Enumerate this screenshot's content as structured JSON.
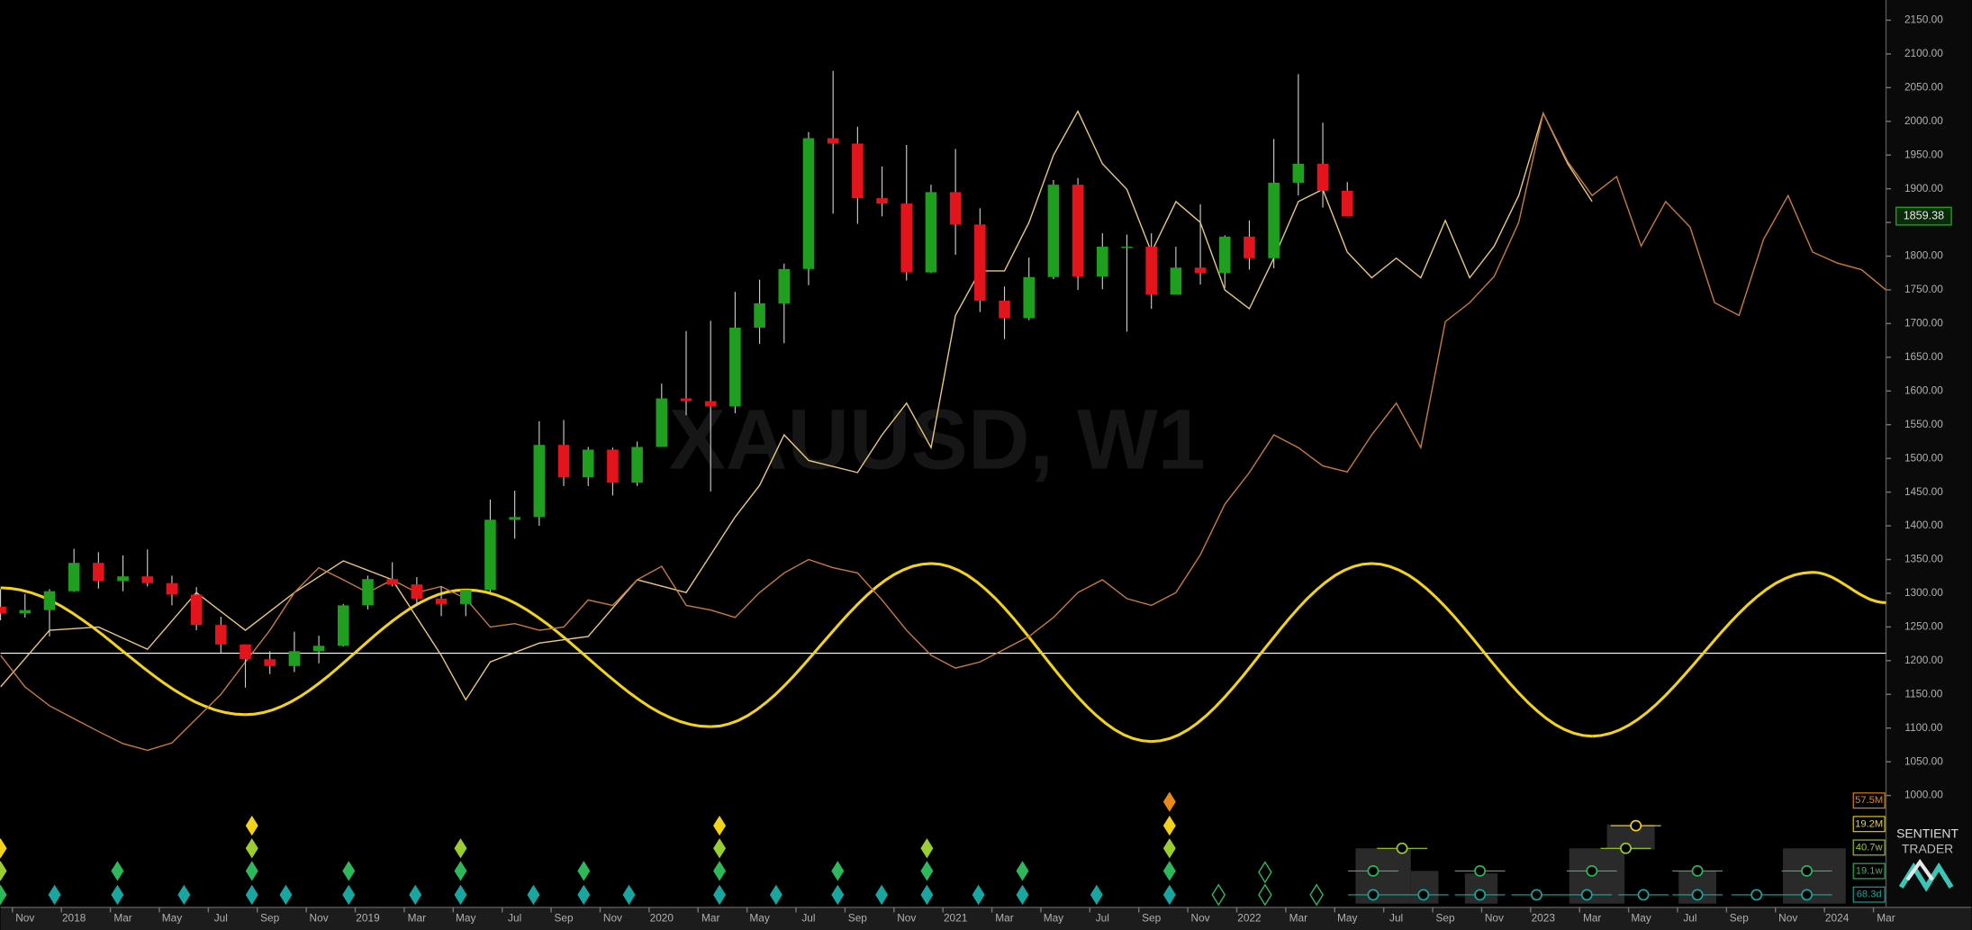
{
  "chart_data": {
    "type": "candlestick",
    "title": "XAUUSD, W1",
    "up_color": "#1f9e1f",
    "down_color": "#e3141c",
    "x": [
      "2017-10",
      "2017-11",
      "2017-12",
      "2018-01",
      "2018-02",
      "2018-03",
      "2018-04",
      "2018-05",
      "2018-06",
      "2018-07",
      "2018-08",
      "2018-09",
      "2018-10",
      "2018-11",
      "2018-12",
      "2019-01",
      "2019-02",
      "2019-03",
      "2019-04",
      "2019-05",
      "2019-06",
      "2019-07",
      "2019-08",
      "2019-09",
      "2019-10",
      "2019-11",
      "2019-12",
      "2020-01",
      "2020-02",
      "2020-03",
      "2020-04",
      "2020-05",
      "2020-06",
      "2020-07",
      "2020-08",
      "2020-09",
      "2020-10",
      "2020-11",
      "2020-12",
      "2021-01",
      "2021-02",
      "2021-03",
      "2021-04",
      "2021-05",
      "2021-06",
      "2021-07",
      "2021-08",
      "2021-09",
      "2021-10",
      "2021-11",
      "2021-12",
      "2022-01",
      "2022-02",
      "2022-03",
      "2022-04",
      "2022-05"
    ],
    "open": [
      1280,
      1270,
      1275,
      1303,
      1345,
      1318,
      1325,
      1315,
      1298,
      1253,
      1224,
      1202,
      1192,
      1214,
      1222,
      1282,
      1321,
      1313,
      1292,
      1284,
      1305,
      1409,
      1413,
      1520,
      1472,
      1513,
      1464,
      1517,
      1589,
      1585,
      1577,
      1694,
      1730,
      1781,
      1975,
      1967,
      1886,
      1878,
      1776,
      1895,
      1847,
      1734,
      1708,
      1769,
      1906,
      1770,
      1814,
      1814,
      1743,
      1783,
      1775,
      1829,
      1797,
      1909,
      1937,
      1897
    ],
    "high": [
      1306,
      1299,
      1306,
      1366,
      1361,
      1356,
      1365,
      1326,
      1309,
      1265,
      1224,
      1214,
      1243,
      1237,
      1284,
      1326,
      1346,
      1324,
      1310,
      1306,
      1439,
      1452,
      1555,
      1557,
      1517,
      1516,
      1525,
      1611,
      1689,
      1704,
      1747,
      1765,
      1789,
      1984,
      2075,
      1992,
      1933,
      1965,
      1906,
      1959,
      1871,
      1755,
      1798,
      1913,
      1916,
      1834,
      1832,
      1834,
      1814,
      1877,
      1831,
      1853,
      1974,
      2070,
      1998,
      1910
    ],
    "low": [
      1260,
      1264,
      1236,
      1302,
      1307,
      1303,
      1310,
      1282,
      1245,
      1211,
      1160,
      1180,
      1183,
      1196,
      1221,
      1276,
      1310,
      1281,
      1266,
      1266,
      1302,
      1381,
      1400,
      1459,
      1459,
      1445,
      1459,
      1517,
      1564,
      1451,
      1567,
      1670,
      1671,
      1757,
      1863,
      1848,
      1859,
      1764,
      1775,
      1802,
      1717,
      1677,
      1705,
      1766,
      1750,
      1751,
      1688,
      1722,
      1746,
      1758,
      1753,
      1780,
      1782,
      1890,
      1872,
      1860
    ],
    "close": [
      1270,
      1275,
      1303,
      1345,
      1318,
      1325,
      1315,
      1298,
      1253,
      1224,
      1202,
      1192,
      1214,
      1222,
      1282,
      1321,
      1313,
      1292,
      1284,
      1305,
      1409,
      1413,
      1520,
      1472,
      1513,
      1464,
      1517,
      1589,
      1585,
      1577,
      1694,
      1730,
      1781,
      1975,
      1967,
      1886,
      1878,
      1776,
      1895,
      1847,
      1734,
      1708,
      1769,
      1906,
      1770,
      1814,
      1814,
      1743,
      1783,
      1775,
      1829,
      1797,
      1909,
      1937,
      1897,
      1859
    ],
    "last_price": {
      "value": 1859.38,
      "label": "1859.38",
      "color": "#1f9e1f"
    },
    "hline": {
      "value": 1211,
      "color": "#ffffff"
    },
    "overlays": [
      {
        "type": "sine",
        "color": "#f2d21b",
        "x": [
          "2017-10",
          "2018-08",
          "2019-05",
          "2020-03",
          "2020-12",
          "2021-09",
          "2022-06",
          "2023-03",
          "2023-12",
          "2024-03"
        ],
        "values": [
          1308,
          1120,
          1305,
          1102,
          1344,
          1080,
          1344,
          1088,
          1331,
          1286
        ]
      },
      {
        "type": "line",
        "color": "#e8c87a",
        "x": [
          "2017-10",
          "2017-12",
          "2018-02",
          "2018-04",
          "2018-06",
          "2018-08",
          "2018-10",
          "2018-12",
          "2019-02",
          "2019-04",
          "2019-05",
          "2019-06",
          "2019-08",
          "2019-10",
          "2019-12",
          "2020-02",
          "2020-04",
          "2020-05",
          "2020-06",
          "2020-07",
          "2020-09",
          "2020-10",
          "2020-11",
          "2020-12",
          "2021-01",
          "2021-02",
          "2021-03",
          "2021-04",
          "2021-05",
          "2021-06",
          "2021-07",
          "2021-08",
          "2021-09",
          "2021-10",
          "2021-11",
          "2021-12",
          "2022-01",
          "2022-02",
          "2022-03",
          "2022-04",
          "2022-05",
          "2022-06",
          "2022-07",
          "2022-08",
          "2022-09",
          "2022-10",
          "2022-11",
          "2022-12",
          "2023-01",
          "2023-02",
          "2023-03"
        ],
        "values": [
          1161,
          1245,
          1250,
          1217,
          1301,
          1245,
          1301,
          1348,
          1320,
          1208,
          1142,
          1198,
          1226,
          1236,
          1320,
          1301,
          1413,
          1460,
          1535,
          1497,
          1479,
          1535,
          1582,
          1516,
          1712,
          1778,
          1778,
          1850,
          1950,
          2015,
          1937,
          1899,
          1806,
          1881,
          1850,
          1750,
          1722,
          1797,
          1881,
          1899,
          1806,
          1768,
          1797,
          1768,
          1853,
          1768,
          1815,
          1890,
          2012,
          1937,
          1881
        ]
      },
      {
        "type": "line",
        "color": "#c97a3c",
        "x": [
          "2017-10",
          "2017-11",
          "2017-12",
          "2018-01",
          "2018-02",
          "2018-03",
          "2018-04",
          "2018-05",
          "2018-06",
          "2018-07",
          "2018-08",
          "2018-09",
          "2018-10",
          "2018-11",
          "2018-12",
          "2019-01",
          "2019-02",
          "2019-03",
          "2019-04",
          "2019-05",
          "2019-06",
          "2019-07",
          "2019-08",
          "2019-09",
          "2019-10",
          "2019-11",
          "2019-12",
          "2020-01",
          "2020-02",
          "2020-03",
          "2020-04",
          "2020-05",
          "2020-06",
          "2020-07",
          "2020-08",
          "2020-09",
          "2020-10",
          "2020-11",
          "2020-12",
          "2021-01",
          "2021-02",
          "2021-03",
          "2021-04",
          "2021-05",
          "2021-06",
          "2021-07",
          "2021-08",
          "2021-09",
          "2021-10",
          "2021-11",
          "2021-12",
          "2022-01",
          "2022-02",
          "2022-03",
          "2022-04",
          "2022-05",
          "2022-06",
          "2022-07",
          "2022-08",
          "2022-09",
          "2022-10",
          "2022-11",
          "2022-12",
          "2023-01",
          "2023-02",
          "2023-03",
          "2023-04",
          "2023-05",
          "2023-06",
          "2023-07",
          "2023-08",
          "2023-09",
          "2023-10",
          "2023-11",
          "2023-12",
          "2024-01",
          "2024-02",
          "2024-03"
        ],
        "values": [
          1208,
          1161,
          1133,
          1114,
          1095,
          1077,
          1067,
          1078,
          1114,
          1150,
          1198,
          1245,
          1301,
          1338,
          1320,
          1301,
          1320,
          1301,
          1310,
          1292,
          1250,
          1255,
          1245,
          1250,
          1290,
          1282,
          1320,
          1340,
          1282,
          1275,
          1264,
          1301,
          1330,
          1350,
          1338,
          1330,
          1290,
          1245,
          1208,
          1189,
          1198,
          1217,
          1236,
          1264,
          1301,
          1320,
          1292,
          1282,
          1301,
          1357,
          1432,
          1479,
          1535,
          1516,
          1489,
          1480,
          1535,
          1582,
          1516,
          1703,
          1731,
          1770,
          1850,
          2012,
          1940,
          1890,
          1918,
          1815,
          1881,
          1843,
          1731,
          1712,
          1825,
          1890,
          1806,
          1790,
          1780,
          1750
        ]
      }
    ],
    "xlim": [
      "2017-10",
      "2024-03"
    ],
    "xticks": [
      {
        "value": "2017-11",
        "label": "Nov"
      },
      {
        "value": "2018-01",
        "label": "2018"
      },
      {
        "value": "2018-03",
        "label": "Mar"
      },
      {
        "value": "2018-05",
        "label": "May"
      },
      {
        "value": "2018-07",
        "label": "Jul"
      },
      {
        "value": "2018-09",
        "label": "Sep"
      },
      {
        "value": "2018-11",
        "label": "Nov"
      },
      {
        "value": "2019-01",
        "label": "2019"
      },
      {
        "value": "2019-03",
        "label": "Mar"
      },
      {
        "value": "2019-05",
        "label": "May"
      },
      {
        "value": "2019-07",
        "label": "Jul"
      },
      {
        "value": "2019-09",
        "label": "Sep"
      },
      {
        "value": "2019-11",
        "label": "Nov"
      },
      {
        "value": "2020-01",
        "label": "2020"
      },
      {
        "value": "2020-03",
        "label": "Mar"
      },
      {
        "value": "2020-05",
        "label": "May"
      },
      {
        "value": "2020-07",
        "label": "Jul"
      },
      {
        "value": "2020-09",
        "label": "Sep"
      },
      {
        "value": "2020-11",
        "label": "Nov"
      },
      {
        "value": "2021-01",
        "label": "2021"
      },
      {
        "value": "2021-03",
        "label": "Mar"
      },
      {
        "value": "2021-05",
        "label": "May"
      },
      {
        "value": "2021-07",
        "label": "Jul"
      },
      {
        "value": "2021-09",
        "label": "Sep"
      },
      {
        "value": "2021-11",
        "label": "Nov"
      },
      {
        "value": "2022-01",
        "label": "2022"
      },
      {
        "value": "2022-03",
        "label": "Mar"
      },
      {
        "value": "2022-05",
        "label": "May"
      },
      {
        "value": "2022-07",
        "label": "Jul"
      },
      {
        "value": "2022-09",
        "label": "Sep"
      },
      {
        "value": "2022-11",
        "label": "Nov"
      },
      {
        "value": "2023-01",
        "label": "2023"
      },
      {
        "value": "2023-03",
        "label": "Mar"
      },
      {
        "value": "2023-05",
        "label": "May"
      },
      {
        "value": "2023-07",
        "label": "Jul"
      },
      {
        "value": "2023-09",
        "label": "Sep"
      },
      {
        "value": "2023-11",
        "label": "Nov"
      },
      {
        "value": "2024-01",
        "label": "2024"
      },
      {
        "value": "2024-03",
        "label": "Mar"
      }
    ],
    "ylim": [
      834,
      2180
    ],
    "yticks": [
      {
        "value": 1000,
        "label": "1000.00"
      },
      {
        "value": 1050,
        "label": "1050.00"
      },
      {
        "value": 1100,
        "label": "1100.00"
      },
      {
        "value": 1150,
        "label": "1150.00"
      },
      {
        "value": 1200,
        "label": "1200.00"
      },
      {
        "value": 1250,
        "label": "1250.00"
      },
      {
        "value": 1300,
        "label": "1300.00"
      },
      {
        "value": 1350,
        "label": "1350.00"
      },
      {
        "value": 1400,
        "label": "1400.00"
      },
      {
        "value": 1450,
        "label": "1450.00"
      },
      {
        "value": 1500,
        "label": "1500.00"
      },
      {
        "value": 1550,
        "label": "1550.00"
      },
      {
        "value": 1600,
        "label": "1600.00"
      },
      {
        "value": 1650,
        "label": "1650.00"
      },
      {
        "value": 1700,
        "label": "1700.00"
      },
      {
        "value": 1750,
        "label": "1750.00"
      },
      {
        "value": 1800,
        "label": "1800.00"
      },
      {
        "value": 1850,
        "label": "1850.00"
      },
      {
        "value": 1900,
        "label": "1900.00"
      },
      {
        "value": 1950,
        "label": "1950.00"
      },
      {
        "value": 2000,
        "label": "2000.00"
      },
      {
        "value": 2050,
        "label": "2050.00"
      },
      {
        "value": 2100,
        "label": "2100.00"
      },
      {
        "value": 2150,
        "label": "2150.00"
      }
    ],
    "cycle_labels": [
      {
        "label": "57.5M",
        "color": "#e8891a"
      },
      {
        "label": "19.2M",
        "color": "#f2d21b"
      },
      {
        "label": "40.7w",
        "color": "#9acd32"
      },
      {
        "label": "19.1w",
        "color": "#2eb85c"
      },
      {
        "label": "68.3d",
        "color": "#1aa6a0"
      }
    ],
    "brand": {
      "line1": "SENTIENT",
      "line2": "TRADER"
    }
  }
}
